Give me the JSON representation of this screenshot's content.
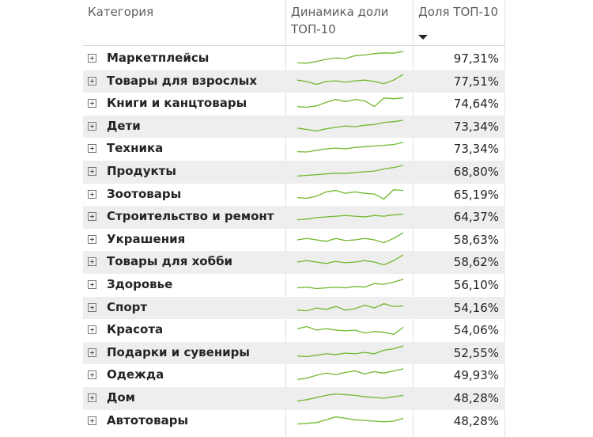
{
  "table": {
    "headers": {
      "category": "Категория",
      "dynamics": "Динамика доли ТОП-10",
      "share": "Доля ТОП-10"
    },
    "sort": "descending",
    "spark_color": "#71b82e",
    "rows": [
      {
        "category": "Маркетплейсы",
        "share": "97,31%",
        "trend": [
          0.2,
          0.18,
          0.3,
          0.45,
          0.55,
          0.5,
          0.7,
          0.75,
          0.85,
          0.9,
          0.88,
          1.0
        ]
      },
      {
        "category": "Товары для взрослых",
        "share": "77,51%",
        "trend": [
          0.6,
          0.5,
          0.3,
          0.5,
          0.55,
          0.45,
          0.55,
          0.6,
          0.5,
          0.35,
          0.6,
          1.0
        ]
      },
      {
        "category": "Книги и канцтовары",
        "share": "74,64%",
        "trend": [
          0.3,
          0.25,
          0.35,
          0.6,
          0.8,
          0.65,
          0.8,
          0.7,
          0.3,
          0.9,
          0.85,
          0.9
        ]
      },
      {
        "category": "Дети",
        "share": "73,34%",
        "trend": [
          0.4,
          0.3,
          0.2,
          0.35,
          0.45,
          0.55,
          0.5,
          0.6,
          0.65,
          0.8,
          0.85,
          0.95
        ]
      },
      {
        "category": "Техника",
        "share": "73,34%",
        "trend": [
          0.3,
          0.28,
          0.4,
          0.5,
          0.55,
          0.5,
          0.6,
          0.65,
          0.7,
          0.75,
          0.8,
          0.95
        ]
      },
      {
        "category": "Продукты",
        "share": "68,80%",
        "trend": [
          0.2,
          0.25,
          0.3,
          0.35,
          0.4,
          0.38,
          0.45,
          0.5,
          0.55,
          0.7,
          0.8,
          0.95
        ]
      },
      {
        "category": "Зоотовары",
        "share": "65,19%",
        "trend": [
          0.3,
          0.25,
          0.4,
          0.7,
          0.8,
          0.6,
          0.7,
          0.6,
          0.55,
          0.2,
          0.85,
          0.8
        ]
      },
      {
        "category": "Строительство и ремонт",
        "share": "64,37%",
        "trend": [
          0.3,
          0.35,
          0.45,
          0.5,
          0.55,
          0.6,
          0.55,
          0.5,
          0.6,
          0.55,
          0.65,
          0.7
        ]
      },
      {
        "category": "Украшения",
        "share": "58,63%",
        "trend": [
          0.5,
          0.6,
          0.5,
          0.4,
          0.6,
          0.45,
          0.5,
          0.6,
          0.5,
          0.3,
          0.6,
          1.0
        ]
      },
      {
        "category": "Товары для хобби",
        "share": "58,62%",
        "trend": [
          0.5,
          0.6,
          0.5,
          0.4,
          0.55,
          0.45,
          0.5,
          0.6,
          0.5,
          0.3,
          0.6,
          1.0
        ]
      },
      {
        "category": "Здоровье",
        "share": "56,10%",
        "trend": [
          0.3,
          0.35,
          0.25,
          0.3,
          0.35,
          0.3,
          0.4,
          0.35,
          0.6,
          0.55,
          0.7,
          0.9
        ]
      },
      {
        "category": "Спорт",
        "share": "54,16%",
        "trend": [
          0.35,
          0.3,
          0.5,
          0.4,
          0.6,
          0.35,
          0.45,
          0.7,
          0.5,
          0.8,
          0.6,
          0.65
        ]
      },
      {
        "category": "Красота",
        "share": "54,06%",
        "trend": [
          0.6,
          0.75,
          0.5,
          0.6,
          0.5,
          0.45,
          0.5,
          0.3,
          0.4,
          0.35,
          0.2,
          0.7
        ]
      },
      {
        "category": "Подарки и сувениры",
        "share": "52,55%",
        "trend": [
          0.3,
          0.25,
          0.35,
          0.45,
          0.4,
          0.5,
          0.45,
          0.55,
          0.45,
          0.7,
          0.8,
          1.0
        ]
      },
      {
        "category": "Одежда",
        "share": "49,93%",
        "trend": [
          0.2,
          0.3,
          0.5,
          0.65,
          0.55,
          0.7,
          0.8,
          0.6,
          0.75,
          0.65,
          0.8,
          0.95
        ]
      },
      {
        "category": "Дом",
        "share": "48,28%",
        "trend": [
          0.3,
          0.4,
          0.55,
          0.7,
          0.8,
          0.75,
          0.7,
          0.6,
          0.55,
          0.5,
          0.6,
          0.7
        ]
      },
      {
        "category": "Автотовары",
        "share": "48,28%",
        "trend": [
          0.3,
          0.35,
          0.4,
          0.6,
          0.8,
          0.7,
          0.6,
          0.55,
          0.5,
          0.45,
          0.5,
          0.7
        ]
      }
    ]
  }
}
